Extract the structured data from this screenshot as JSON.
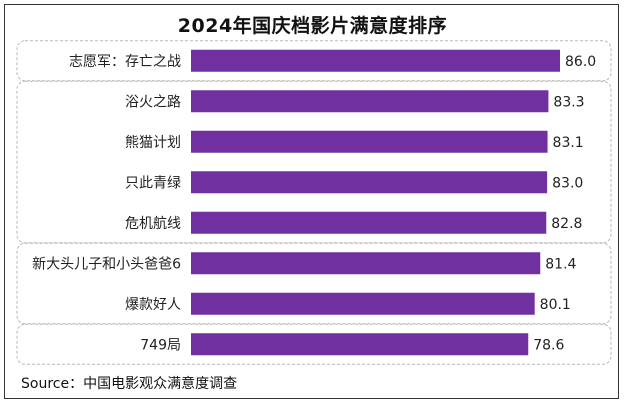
{
  "title": "2024年国庆档影片满意度排序",
  "source": "Source：中国电影观众满意度调查",
  "colors": {
    "bar": "#7030a0",
    "group_border": "#b8b8b8",
    "text": "#222222"
  },
  "chart_data": {
    "type": "bar",
    "orientation": "horizontal",
    "title": "2024年国庆档影片满意度排序",
    "xlabel": "",
    "ylabel": "",
    "xlim": [
      0,
      86.0
    ],
    "grid": false,
    "legend": "none",
    "categories": [
      "志愿军：存亡之战",
      "浴火之路",
      "熊猫计划",
      "只此青绿",
      "危机航线",
      "新大头儿子和小头爸爸6",
      "爆款好人",
      "749局"
    ],
    "values": [
      86.0,
      83.3,
      83.1,
      83.0,
      82.8,
      81.4,
      80.1,
      78.6
    ],
    "value_labels": [
      "86.0",
      "83.3",
      "83.1",
      "83.0",
      "82.8",
      "81.4",
      "80.1",
      "78.6"
    ],
    "groups": [
      {
        "members": [
          0
        ]
      },
      {
        "members": [
          1,
          2,
          3,
          4
        ]
      },
      {
        "members": [
          5,
          6
        ]
      },
      {
        "members": [
          7
        ]
      }
    ]
  }
}
